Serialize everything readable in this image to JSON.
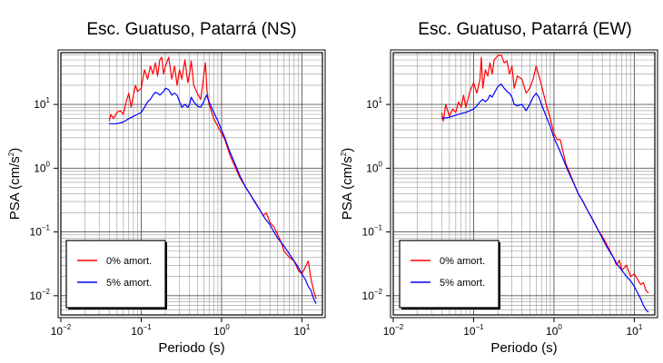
{
  "chart_data": [
    {
      "type": "line",
      "title": "Esc. Guatuso, Patarrá (NS)",
      "xlabel": "Periodo (s)",
      "ylabel": "PSA (cm/s²)",
      "ylabel_text": "PSA (cm/s",
      "ylabel_sup": "2",
      "ylabel_close": ")",
      "x_scale": "log",
      "y_scale": "log",
      "xlim": [
        0.01,
        18
      ],
      "ylim": [
        0.005,
        65
      ],
      "x_ticks": [
        {
          "base": "10",
          "exp": "−2",
          "value": 0.01
        },
        {
          "base": "10",
          "exp": "−1",
          "value": 0.1
        },
        {
          "base": "10",
          "exp": "0",
          "value": 1
        },
        {
          "base": "10",
          "exp": "1",
          "value": 10
        }
      ],
      "y_ticks": [
        {
          "base": "10",
          "exp": "−2",
          "value": 0.01
        },
        {
          "base": "10",
          "exp": "−1",
          "value": 0.1
        },
        {
          "base": "10",
          "exp": "0",
          "value": 1
        },
        {
          "base": "10",
          "exp": "1",
          "value": 10
        }
      ],
      "grid": true,
      "legend": {
        "placement": "bottom-left"
      },
      "series": [
        {
          "name": "0% amort.",
          "color": "#ff0000",
          "points": [
            [
              0.04,
              5.5
            ],
            [
              0.042,
              7.0
            ],
            [
              0.045,
              6.0
            ],
            [
              0.05,
              7.5
            ],
            [
              0.055,
              8.0
            ],
            [
              0.06,
              7.0
            ],
            [
              0.065,
              11
            ],
            [
              0.07,
              15
            ],
            [
              0.075,
              9
            ],
            [
              0.08,
              14
            ],
            [
              0.085,
              20
            ],
            [
              0.09,
              16
            ],
            [
              0.1,
              18
            ],
            [
              0.11,
              35
            ],
            [
              0.12,
              25
            ],
            [
              0.13,
              40
            ],
            [
              0.14,
              30
            ],
            [
              0.15,
              45
            ],
            [
              0.16,
              28
            ],
            [
              0.17,
              50
            ],
            [
              0.18,
              55
            ],
            [
              0.19,
              30
            ],
            [
              0.2,
              40
            ],
            [
              0.22,
              55
            ],
            [
              0.24,
              25
            ],
            [
              0.26,
              40
            ],
            [
              0.28,
              20
            ],
            [
              0.3,
              35
            ],
            [
              0.32,
              25
            ],
            [
              0.35,
              50
            ],
            [
              0.38,
              22
            ],
            [
              0.4,
              30
            ],
            [
              0.42,
              48
            ],
            [
              0.45,
              20
            ],
            [
              0.5,
              15
            ],
            [
              0.55,
              12
            ],
            [
              0.6,
              28
            ],
            [
              0.63,
              45
            ],
            [
              0.66,
              16
            ],
            [
              0.7,
              10
            ],
            [
              0.8,
              6
            ],
            [
              0.9,
              4.5
            ],
            [
              1.0,
              3.5
            ],
            [
              1.1,
              2.8
            ],
            [
              1.2,
              2.0
            ],
            [
              1.3,
              1.5
            ],
            [
              1.5,
              1.0
            ],
            [
              1.7,
              0.7
            ],
            [
              2.0,
              0.5
            ],
            [
              2.3,
              0.38
            ],
            [
              2.6,
              0.3
            ],
            [
              3.0,
              0.22
            ],
            [
              3.3,
              0.18
            ],
            [
              3.6,
              0.2
            ],
            [
              4.0,
              0.14
            ],
            [
              4.5,
              0.12
            ],
            [
              5.0,
              0.09
            ],
            [
              5.5,
              0.07
            ],
            [
              6.0,
              0.05
            ],
            [
              7.0,
              0.04
            ],
            [
              8.0,
              0.035
            ],
            [
              9.0,
              0.025
            ],
            [
              10.0,
              0.022
            ],
            [
              11.0,
              0.028
            ],
            [
              12.0,
              0.035
            ],
            [
              13.0,
              0.018
            ],
            [
              14.0,
              0.012
            ],
            [
              15.0,
              0.009
            ]
          ]
        },
        {
          "name": "5% amort.",
          "color": "#0000ff",
          "points": [
            [
              0.04,
              5.0
            ],
            [
              0.05,
              5.0
            ],
            [
              0.06,
              5.3
            ],
            [
              0.07,
              6.0
            ],
            [
              0.08,
              6.5
            ],
            [
              0.09,
              7.0
            ],
            [
              0.1,
              7.5
            ],
            [
              0.11,
              9.0
            ],
            [
              0.12,
              11
            ],
            [
              0.13,
              12
            ],
            [
              0.14,
              14
            ],
            [
              0.15,
              15.5
            ],
            [
              0.16,
              15
            ],
            [
              0.17,
              14
            ],
            [
              0.18,
              15
            ],
            [
              0.19,
              16
            ],
            [
              0.2,
              18
            ],
            [
              0.22,
              17
            ],
            [
              0.24,
              14
            ],
            [
              0.26,
              15
            ],
            [
              0.28,
              14
            ],
            [
              0.3,
              11
            ],
            [
              0.32,
              9
            ],
            [
              0.35,
              10
            ],
            [
              0.38,
              9
            ],
            [
              0.4,
              10
            ],
            [
              0.42,
              13
            ],
            [
              0.45,
              11
            ],
            [
              0.5,
              9.5
            ],
            [
              0.55,
              9
            ],
            [
              0.6,
              11
            ],
            [
              0.65,
              14
            ],
            [
              0.7,
              11
            ],
            [
              0.8,
              7.5
            ],
            [
              0.9,
              5.5
            ],
            [
              1.0,
              4.0
            ],
            [
              1.1,
              3.0
            ],
            [
              1.2,
              2.2
            ],
            [
              1.3,
              1.7
            ],
            [
              1.5,
              1.1
            ],
            [
              1.7,
              0.75
            ],
            [
              2.0,
              0.5
            ],
            [
              2.3,
              0.38
            ],
            [
              2.6,
              0.29
            ],
            [
              3.0,
              0.22
            ],
            [
              3.5,
              0.16
            ],
            [
              4.0,
              0.13
            ],
            [
              4.5,
              0.1
            ],
            [
              5.0,
              0.08
            ],
            [
              6.0,
              0.06
            ],
            [
              7.0,
              0.045
            ],
            [
              8.0,
              0.035
            ],
            [
              9.0,
              0.028
            ],
            [
              10.0,
              0.022
            ],
            [
              11.0,
              0.018
            ],
            [
              12.0,
              0.014
            ],
            [
              13.0,
              0.012
            ],
            [
              14.0,
              0.009
            ],
            [
              15.0,
              0.0075
            ]
          ]
        }
      ]
    },
    {
      "type": "line",
      "title": "Esc. Guatuso, Patarrá (EW)",
      "xlabel": "Periodo (s)",
      "ylabel": "PSA (cm/s²)",
      "ylabel_text": "PSA (cm/s",
      "ylabel_sup": "2",
      "ylabel_close": ")",
      "x_scale": "log",
      "y_scale": "log",
      "xlim": [
        0.01,
        18
      ],
      "ylim": [
        0.005,
        65
      ],
      "x_ticks": [
        {
          "base": "10",
          "exp": "−2",
          "value": 0.01
        },
        {
          "base": "10",
          "exp": "−1",
          "value": 0.1
        },
        {
          "base": "10",
          "exp": "0",
          "value": 1
        },
        {
          "base": "10",
          "exp": "1",
          "value": 10
        }
      ],
      "y_ticks": [
        {
          "base": "10",
          "exp": "−2",
          "value": 0.01
        },
        {
          "base": "10",
          "exp": "−1",
          "value": 0.1
        },
        {
          "base": "10",
          "exp": "0",
          "value": 1
        },
        {
          "base": "10",
          "exp": "1",
          "value": 10
        }
      ],
      "grid": true,
      "legend": {
        "placement": "bottom-left"
      },
      "series": [
        {
          "name": "0% amort.",
          "color": "#ff0000",
          "points": [
            [
              0.04,
              7.5
            ],
            [
              0.042,
              5.5
            ],
            [
              0.045,
              10
            ],
            [
              0.05,
              6.5
            ],
            [
              0.055,
              8.5
            ],
            [
              0.06,
              7.5
            ],
            [
              0.065,
              11
            ],
            [
              0.07,
              9
            ],
            [
              0.075,
              14
            ],
            [
              0.08,
              9
            ],
            [
              0.085,
              12
            ],
            [
              0.09,
              16
            ],
            [
              0.1,
              22
            ],
            [
              0.11,
              15
            ],
            [
              0.12,
              25
            ],
            [
              0.125,
              55
            ],
            [
              0.13,
              18
            ],
            [
              0.14,
              35
            ],
            [
              0.15,
              28
            ],
            [
              0.16,
              45
            ],
            [
              0.17,
              30
            ],
            [
              0.18,
              50
            ],
            [
              0.2,
              58
            ],
            [
              0.22,
              60
            ],
            [
              0.24,
              45
            ],
            [
              0.26,
              48
            ],
            [
              0.28,
              30
            ],
            [
              0.3,
              40
            ],
            [
              0.32,
              18
            ],
            [
              0.35,
              28
            ],
            [
              0.4,
              25
            ],
            [
              0.45,
              15
            ],
            [
              0.5,
              18
            ],
            [
              0.55,
              25
            ],
            [
              0.6,
              40
            ],
            [
              0.65,
              28
            ],
            [
              0.7,
              20
            ],
            [
              0.8,
              10
            ],
            [
              0.9,
              6
            ],
            [
              1.0,
              3.5
            ],
            [
              1.1,
              2.8
            ],
            [
              1.2,
              2.8
            ],
            [
              1.3,
              1.8
            ],
            [
              1.4,
              1.2
            ],
            [
              1.6,
              0.8
            ],
            [
              1.8,
              0.55
            ],
            [
              2.0,
              0.4
            ],
            [
              2.3,
              0.3
            ],
            [
              2.6,
              0.22
            ],
            [
              3.0,
              0.16
            ],
            [
              3.5,
              0.11
            ],
            [
              4.0,
              0.085
            ],
            [
              4.5,
              0.065
            ],
            [
              5.0,
              0.05
            ],
            [
              5.5,
              0.04
            ],
            [
              6.0,
              0.03
            ],
            [
              6.5,
              0.036
            ],
            [
              7.0,
              0.025
            ],
            [
              8.0,
              0.03
            ],
            [
              9.0,
              0.02
            ],
            [
              10.0,
              0.022
            ],
            [
              11.0,
              0.018
            ],
            [
              12.0,
              0.015
            ],
            [
              13.0,
              0.016
            ],
            [
              14.0,
              0.012
            ],
            [
              15.0,
              0.011
            ]
          ]
        },
        {
          "name": "5% amort.",
          "color": "#0000ff",
          "points": [
            [
              0.04,
              6.0
            ],
            [
              0.05,
              6.3
            ],
            [
              0.06,
              6.8
            ],
            [
              0.07,
              7.2
            ],
            [
              0.08,
              7.5
            ],
            [
              0.09,
              8.0
            ],
            [
              0.1,
              8.5
            ],
            [
              0.11,
              9.5
            ],
            [
              0.12,
              11
            ],
            [
              0.13,
              12
            ],
            [
              0.14,
              11
            ],
            [
              0.15,
              12
            ],
            [
              0.16,
              14
            ],
            [
              0.17,
              13
            ],
            [
              0.18,
              15
            ],
            [
              0.2,
              19
            ],
            [
              0.22,
              21
            ],
            [
              0.24,
              18
            ],
            [
              0.26,
              16
            ],
            [
              0.28,
              15
            ],
            [
              0.3,
              13
            ],
            [
              0.32,
              10
            ],
            [
              0.35,
              9.5
            ],
            [
              0.4,
              10
            ],
            [
              0.45,
              8
            ],
            [
              0.5,
              10
            ],
            [
              0.55,
              13
            ],
            [
              0.6,
              15
            ],
            [
              0.65,
              13
            ],
            [
              0.7,
              10
            ],
            [
              0.8,
              6.5
            ],
            [
              0.9,
              4.5
            ],
            [
              1.0,
              3.0
            ],
            [
              1.1,
              2.3
            ],
            [
              1.2,
              1.8
            ],
            [
              1.3,
              1.4
            ],
            [
              1.4,
              1.1
            ],
            [
              1.6,
              0.75
            ],
            [
              1.8,
              0.55
            ],
            [
              2.0,
              0.4
            ],
            [
              2.3,
              0.3
            ],
            [
              2.6,
              0.22
            ],
            [
              3.0,
              0.16
            ],
            [
              3.5,
              0.11
            ],
            [
              4.0,
              0.08
            ],
            [
              4.5,
              0.06
            ],
            [
              5.0,
              0.048
            ],
            [
              5.5,
              0.04
            ],
            [
              6.0,
              0.032
            ],
            [
              7.0,
              0.025
            ],
            [
              8.0,
              0.02
            ],
            [
              9.0,
              0.017
            ],
            [
              10.0,
              0.014
            ],
            [
              11.0,
              0.011
            ],
            [
              12.0,
              0.009
            ],
            [
              13.0,
              0.007
            ],
            [
              14.0,
              0.006
            ],
            [
              15.0,
              0.0055
            ]
          ]
        }
      ]
    }
  ]
}
